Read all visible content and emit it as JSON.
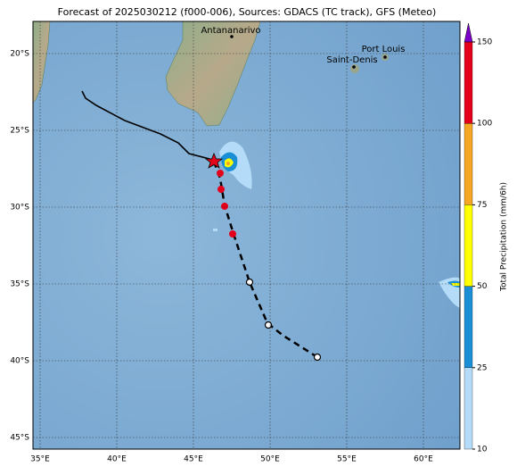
{
  "title": "Forecast of 2025030212 (f000-006), Sources: GDACS (TC track), GFS (Meteo)",
  "lat_labels": [
    "20°S",
    "25°S",
    "30°S",
    "35°S",
    "40°S",
    "45°S"
  ],
  "lon_labels": [
    "35°E",
    "40°E",
    "45°E",
    "50°E",
    "55°E",
    "60°E"
  ],
  "places": [
    "Antananarivo",
    "Port Louis",
    "Saint-Denis"
  ],
  "colorbar": {
    "label": "Total Precipitation (mm/6h)",
    "levels": [
      10,
      25,
      50,
      75,
      100,
      150
    ],
    "colors": [
      "#b4dbf7",
      "#1b8fd6",
      "#ffff00",
      "#f5a623",
      "#e4001b"
    ],
    "extend_color": "#7a00c8"
  }
}
